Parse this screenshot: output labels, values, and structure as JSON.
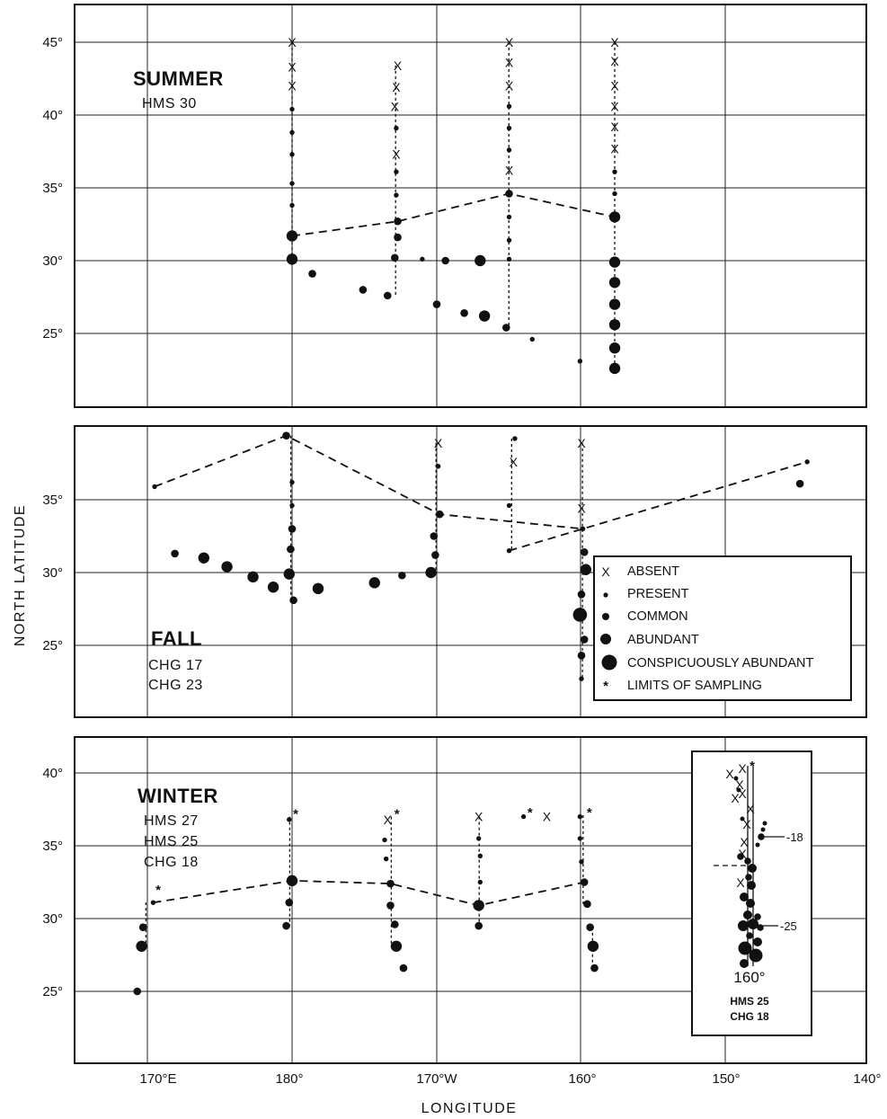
{
  "figure": {
    "ylabel": "NORTH LATITUDE",
    "xlabel": "LONGITUDE",
    "x_ticks": [
      "170°E",
      "180°",
      "170°W",
      "160°",
      "150°",
      "140°"
    ],
    "legend": [
      {
        "symbol": "X",
        "label": "ABSENT"
      },
      {
        "symbol": "•",
        "label": "PRESENT"
      },
      {
        "symbol": "•",
        "label": "COMMON"
      },
      {
        "symbol": "●",
        "label": "ABUNDANT"
      },
      {
        "symbol": "●",
        "label": "CONSPICUOUSLY ABUNDANT"
      },
      {
        "symbol": "*",
        "label": "LIMITS OF SAMPLING"
      }
    ]
  },
  "chart_data": [
    {
      "type": "scatter",
      "panel": "summer",
      "season_label": "SUMMER",
      "cruises": [
        "HMS 30"
      ],
      "ylim": [
        20.5,
        47.5
      ],
      "xlim": [
        165,
        220
      ],
      "y_ticks": [
        "45°",
        "40°",
        "35°",
        "30°",
        "25°"
      ],
      "note": "x in degrees east (180 = 180°, 200 = 160°W)",
      "points": [
        {
          "x": 180,
          "y": 45,
          "s": "absent"
        },
        {
          "x": 180,
          "y": 43.3,
          "s": "absent"
        },
        {
          "x": 180,
          "y": 42,
          "s": "absent"
        },
        {
          "x": 180,
          "y": 40.4,
          "s": "present"
        },
        {
          "x": 180,
          "y": 38.8,
          "s": "present"
        },
        {
          "x": 180,
          "y": 37.3,
          "s": "present"
        },
        {
          "x": 180,
          "y": 35.3,
          "s": "present"
        },
        {
          "x": 180,
          "y": 33.8,
          "s": "present"
        },
        {
          "x": 180,
          "y": 31.7,
          "s": "abundant"
        },
        {
          "x": 180,
          "y": 30.1,
          "s": "abundant"
        },
        {
          "x": 181.4,
          "y": 29.1,
          "s": "common"
        },
        {
          "x": 187.3,
          "y": 43.4,
          "s": "absent"
        },
        {
          "x": 187.2,
          "y": 41.9,
          "s": "absent"
        },
        {
          "x": 187.1,
          "y": 40.6,
          "s": "absent"
        },
        {
          "x": 187.2,
          "y": 39.1,
          "s": "present"
        },
        {
          "x": 187.2,
          "y": 37.3,
          "s": "absent"
        },
        {
          "x": 187.2,
          "y": 36.1,
          "s": "present"
        },
        {
          "x": 187.2,
          "y": 34.5,
          "s": "present"
        },
        {
          "x": 187.3,
          "y": 32.7,
          "s": "common"
        },
        {
          "x": 187.3,
          "y": 31.6,
          "s": "common"
        },
        {
          "x": 187.1,
          "y": 30.2,
          "s": "common"
        },
        {
          "x": 189,
          "y": 30.1,
          "s": "present"
        },
        {
          "x": 190.6,
          "y": 30,
          "s": "common"
        },
        {
          "x": 193,
          "y": 30,
          "s": "abundant"
        },
        {
          "x": 184.9,
          "y": 28,
          "s": "common"
        },
        {
          "x": 186.6,
          "y": 27.6,
          "s": "common"
        },
        {
          "x": 190,
          "y": 27,
          "s": "common"
        },
        {
          "x": 191.9,
          "y": 26.4,
          "s": "common"
        },
        {
          "x": 193.3,
          "y": 26.2,
          "s": "abundant"
        },
        {
          "x": 194.8,
          "y": 25.4,
          "s": "common"
        },
        {
          "x": 196.6,
          "y": 24.6,
          "s": "present"
        },
        {
          "x": 195,
          "y": 45,
          "s": "absent"
        },
        {
          "x": 195,
          "y": 43.6,
          "s": "absent"
        },
        {
          "x": 195,
          "y": 42,
          "s": "absent"
        },
        {
          "x": 195,
          "y": 40.6,
          "s": "present"
        },
        {
          "x": 195,
          "y": 39.1,
          "s": "present"
        },
        {
          "x": 195,
          "y": 37.6,
          "s": "present"
        },
        {
          "x": 195,
          "y": 36.2,
          "s": "absent"
        },
        {
          "x": 195,
          "y": 34.6,
          "s": "common"
        },
        {
          "x": 195,
          "y": 33,
          "s": "present"
        },
        {
          "x": 195,
          "y": 31.4,
          "s": "present"
        },
        {
          "x": 195,
          "y": 30.1,
          "s": "present"
        },
        {
          "x": 202.3,
          "y": 45,
          "s": "absent"
        },
        {
          "x": 202.3,
          "y": 43.7,
          "s": "absent"
        },
        {
          "x": 202.3,
          "y": 42,
          "s": "absent"
        },
        {
          "x": 202.3,
          "y": 40.6,
          "s": "absent"
        },
        {
          "x": 202.3,
          "y": 39.2,
          "s": "absent"
        },
        {
          "x": 202.3,
          "y": 37.7,
          "s": "absent"
        },
        {
          "x": 202.3,
          "y": 36.1,
          "s": "present"
        },
        {
          "x": 202.3,
          "y": 34.6,
          "s": "present"
        },
        {
          "x": 202.3,
          "y": 33,
          "s": "abundant"
        },
        {
          "x": 202.3,
          "y": 29.9,
          "s": "abundant"
        },
        {
          "x": 202.3,
          "y": 28.5,
          "s": "abundant"
        },
        {
          "x": 202.3,
          "y": 27,
          "s": "abundant"
        },
        {
          "x": 202.3,
          "y": 25.6,
          "s": "abundant"
        },
        {
          "x": 202.3,
          "y": 24,
          "s": "abundant"
        },
        {
          "x": 202.3,
          "y": 22.6,
          "s": "abundant"
        },
        {
          "x": 199.9,
          "y": 23.1,
          "s": "present"
        }
      ],
      "boundary_line": [
        [
          180,
          31.7
        ],
        [
          187.3,
          32.7
        ],
        [
          195,
          34.6
        ],
        [
          202.3,
          33
        ]
      ]
    },
    {
      "type": "scatter",
      "panel": "fall",
      "season_label": "FALL",
      "cruises": [
        "CHG 17",
        "CHG 23"
      ],
      "ylim": [
        20,
        40.2
      ],
      "xlim": [
        165,
        220
      ],
      "y_ticks": [
        "35°",
        "30°",
        "25°"
      ],
      "points": [
        {
          "x": 170.5,
          "y": 35.9,
          "s": "present"
        },
        {
          "x": 179.6,
          "y": 39.4,
          "s": "common"
        },
        {
          "x": 180,
          "y": 36.2,
          "s": "present"
        },
        {
          "x": 180,
          "y": 34.6,
          "s": "present"
        },
        {
          "x": 180,
          "y": 33,
          "s": "common"
        },
        {
          "x": 179.9,
          "y": 31.6,
          "s": "common"
        },
        {
          "x": 180.1,
          "y": 28.1,
          "s": "common"
        },
        {
          "x": 171.9,
          "y": 31.3,
          "s": "common"
        },
        {
          "x": 173.9,
          "y": 31,
          "s": "abundant"
        },
        {
          "x": 175.5,
          "y": 30.4,
          "s": "abundant"
        },
        {
          "x": 177.3,
          "y": 29.7,
          "s": "abundant"
        },
        {
          "x": 178.7,
          "y": 29,
          "s": "abundant"
        },
        {
          "x": 179.8,
          "y": 29.9,
          "s": "abundant"
        },
        {
          "x": 181.8,
          "y": 28.9,
          "s": "abundant"
        },
        {
          "x": 185.7,
          "y": 29.3,
          "s": "abundant"
        },
        {
          "x": 187.6,
          "y": 29.8,
          "s": "common"
        },
        {
          "x": 189.6,
          "y": 30,
          "s": "abundant"
        },
        {
          "x": 189.8,
          "y": 32.5,
          "s": "common"
        },
        {
          "x": 189.9,
          "y": 31.2,
          "s": "common"
        },
        {
          "x": 190.1,
          "y": 38.9,
          "s": "absent"
        },
        {
          "x": 190.1,
          "y": 37.3,
          "s": "present"
        },
        {
          "x": 190.2,
          "y": 34,
          "s": "common"
        },
        {
          "x": 195.4,
          "y": 39.2,
          "s": "present"
        },
        {
          "x": 195.3,
          "y": 37.6,
          "s": "absent"
        },
        {
          "x": 195,
          "y": 34.6,
          "s": "present"
        },
        {
          "x": 195,
          "y": 31.5,
          "s": "present"
        },
        {
          "x": 200,
          "y": 38.9,
          "s": "absent"
        },
        {
          "x": 200,
          "y": 34.4,
          "s": "absent"
        },
        {
          "x": 200.1,
          "y": 33,
          "s": "present"
        },
        {
          "x": 200.2,
          "y": 31.4,
          "s": "common"
        },
        {
          "x": 200.3,
          "y": 30.2,
          "s": "abundant"
        },
        {
          "x": 200,
          "y": 28.5,
          "s": "common"
        },
        {
          "x": 199.9,
          "y": 27.1,
          "s": "conspicuously abundant"
        },
        {
          "x": 200.2,
          "y": 25.4,
          "s": "common"
        },
        {
          "x": 200,
          "y": 24.3,
          "s": "common"
        },
        {
          "x": 200,
          "y": 22.7,
          "s": "present"
        },
        {
          "x": 215.6,
          "y": 37.6,
          "s": "present"
        },
        {
          "x": 215.1,
          "y": 36.1,
          "s": "common"
        }
      ],
      "boundary_line": [
        [
          170.5,
          35.9
        ],
        [
          179.6,
          39.4
        ],
        [
          190.2,
          34
        ],
        [
          200.1,
          33
        ]
      ],
      "boundary_line_2": [
        [
          195,
          31.5
        ],
        [
          200.1,
          33
        ],
        [
          215.6,
          37.6
        ]
      ]
    },
    {
      "type": "scatter",
      "panel": "winter",
      "season_label": "WINTER",
      "cruises": [
        "HMS 27",
        "HMS 25",
        "CHG 18"
      ],
      "ylim": [
        20,
        42.5
      ],
      "xlim": [
        165,
        220
      ],
      "y_ticks": [
        "40°",
        "35°",
        "30°",
        "25°"
      ],
      "points": [
        {
          "x": 170.4,
          "y": 31.1,
          "s": "present"
        },
        {
          "x": 170.5,
          "y": 31.8,
          "s": "limit"
        },
        {
          "x": 169.7,
          "y": 29.4,
          "s": "common"
        },
        {
          "x": 169.6,
          "y": 28.1,
          "s": "abundant"
        },
        {
          "x": 169.3,
          "y": 25,
          "s": "common"
        },
        {
          "x": 179.8,
          "y": 36.8,
          "s": "present"
        },
        {
          "x": 180,
          "y": 37,
          "s": "limit"
        },
        {
          "x": 180,
          "y": 32.6,
          "s": "abundant"
        },
        {
          "x": 179.8,
          "y": 31.1,
          "s": "common"
        },
        {
          "x": 179.6,
          "y": 29.5,
          "s": "common"
        },
        {
          "x": 186.6,
          "y": 36.8,
          "s": "absent"
        },
        {
          "x": 187,
          "y": 37,
          "s": "limit"
        },
        {
          "x": 186.4,
          "y": 35.4,
          "s": "present"
        },
        {
          "x": 186.5,
          "y": 34.1,
          "s": "present"
        },
        {
          "x": 186.8,
          "y": 32.4,
          "s": "common"
        },
        {
          "x": 186.8,
          "y": 30.9,
          "s": "common"
        },
        {
          "x": 187.1,
          "y": 29.6,
          "s": "common"
        },
        {
          "x": 187.2,
          "y": 28.1,
          "s": "abundant"
        },
        {
          "x": 187.7,
          "y": 26.6,
          "s": "common"
        },
        {
          "x": 192.9,
          "y": 37,
          "s": "absent"
        },
        {
          "x": 192.9,
          "y": 35.5,
          "s": "present"
        },
        {
          "x": 193,
          "y": 34.3,
          "s": "present"
        },
        {
          "x": 193,
          "y": 32.5,
          "s": "present"
        },
        {
          "x": 192.9,
          "y": 30.9,
          "s": "abundant"
        },
        {
          "x": 192.9,
          "y": 29.5,
          "s": "common"
        },
        {
          "x": 196,
          "y": 37,
          "s": "present"
        },
        {
          "x": 196.2,
          "y": 37.1,
          "s": "limit"
        },
        {
          "x": 197.6,
          "y": 37,
          "s": "absent"
        },
        {
          "x": 199.9,
          "y": 37,
          "s": "present"
        },
        {
          "x": 200.3,
          "y": 37.1,
          "s": "limit"
        },
        {
          "x": 199.9,
          "y": 35.5,
          "s": "present"
        },
        {
          "x": 200,
          "y": 33.9,
          "s": "present"
        },
        {
          "x": 200.2,
          "y": 32.5,
          "s": "common"
        },
        {
          "x": 200.4,
          "y": 31,
          "s": "common"
        },
        {
          "x": 200.6,
          "y": 29.4,
          "s": "common"
        },
        {
          "x": 200.8,
          "y": 28.1,
          "s": "abundant"
        },
        {
          "x": 200.9,
          "y": 26.6,
          "s": "common"
        }
      ],
      "boundary_line": [
        [
          170.4,
          31.1
        ],
        [
          180,
          32.6
        ],
        [
          186.8,
          32.4
        ],
        [
          192.9,
          30.9
        ],
        [
          200.2,
          32.5
        ]
      ],
      "inset": {
        "cruises": [
          "HMS 25",
          "CHG 18"
        ],
        "tick_label": "160°",
        "labels": [
          "-18",
          "-25"
        ]
      }
    }
  ]
}
